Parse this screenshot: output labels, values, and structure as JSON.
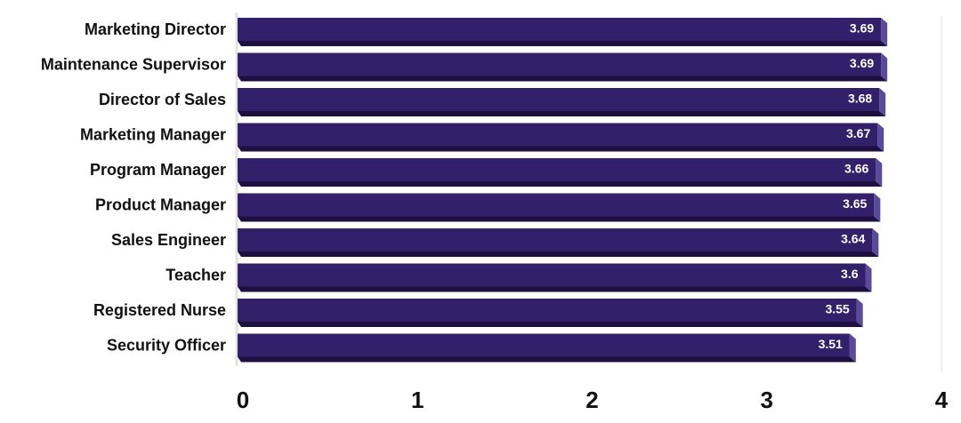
{
  "chart_data": {
    "type": "bar",
    "orientation": "horizontal",
    "categories": [
      "Marketing Director",
      "Maintenance Supervisor",
      "Director of Sales",
      "Marketing Manager",
      "Program Manager",
      "Product Manager",
      "Sales Engineer",
      "Teacher",
      "Registered Nurse",
      "Security Officer"
    ],
    "values": [
      3.69,
      3.69,
      3.68,
      3.67,
      3.66,
      3.65,
      3.64,
      3.6,
      3.55,
      3.51
    ],
    "color": "#33206b",
    "xlim": [
      0,
      4
    ],
    "xticks": [
      0,
      1,
      2,
      3,
      4
    ],
    "grid": false
  }
}
